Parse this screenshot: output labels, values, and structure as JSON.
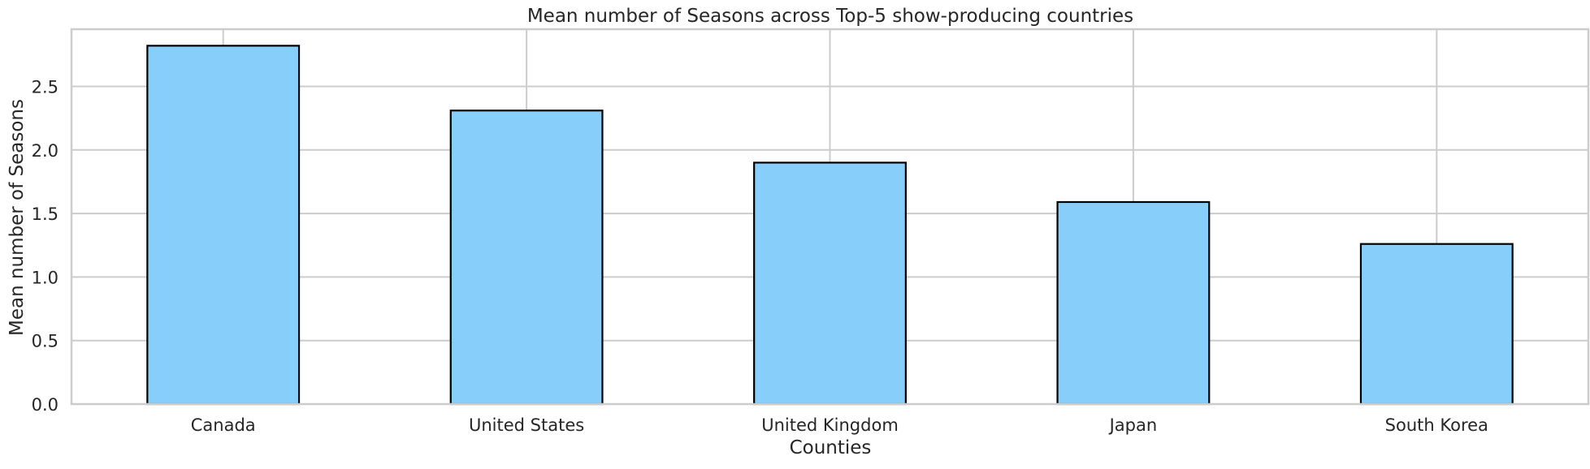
{
  "chart_data": {
    "type": "bar",
    "title": "Mean number of Seasons across Top-5 show-producing countries",
    "xlabel": "Counties",
    "ylabel": "Mean number of Seasons",
    "categories": [
      "Canada",
      "United States",
      "United Kingdom",
      "Japan",
      "South Korea"
    ],
    "values": [
      2.82,
      2.31,
      1.9,
      1.59,
      1.26
    ],
    "ylim": [
      0,
      2.95
    ],
    "yticks": [
      0.0,
      0.5,
      1.0,
      1.5,
      2.0,
      2.5
    ],
    "ytick_labels": [
      "0.0",
      "0.5",
      "1.0",
      "1.5",
      "2.0",
      "2.5"
    ],
    "grid": true,
    "legend": "none",
    "colors": {
      "bar_fill": "#87CEFA",
      "bar_edge": "#000000",
      "grid": "#cccccc",
      "spine": "#cccccc",
      "text": "#262626"
    }
  }
}
